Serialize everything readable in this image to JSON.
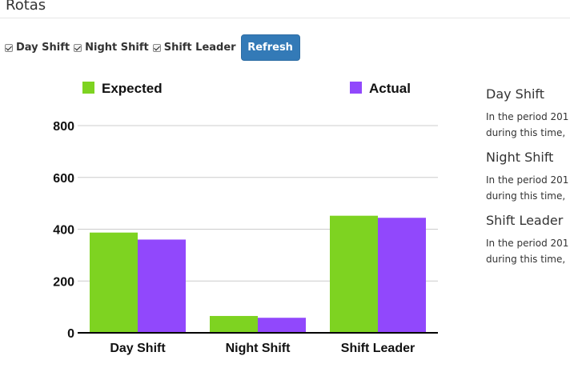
{
  "page": {
    "title": "Rotas"
  },
  "filters": [
    {
      "label": "Day Shift",
      "checked": true
    },
    {
      "label": "Night Shift",
      "checked": true
    },
    {
      "label": "Shift Leader",
      "checked": true
    }
  ],
  "refresh_label": "Refresh",
  "chart_data": {
    "type": "bar",
    "categories": [
      "Day Shift",
      "Night Shift",
      "Shift Leader"
    ],
    "series": [
      {
        "name": "Expected",
        "values": [
          387,
          65,
          452
        ],
        "color": "#7ed321"
      },
      {
        "name": "Actual",
        "values": [
          360,
          58,
          444
        ],
        "color": "#9148fc"
      }
    ],
    "ylim": [
      0,
      800
    ],
    "yticks": [
      0,
      200,
      400,
      600,
      800
    ],
    "grid": true,
    "legend": "top"
  },
  "side_panel": [
    {
      "heading": "Day Shift",
      "line1": "In the period 201",
      "line2": "during this time,"
    },
    {
      "heading": "Night Shift",
      "line1": "In the period 201",
      "line2": "during this time,"
    },
    {
      "heading": "Shift Leader",
      "line1": "In the period 201",
      "line2": "during this time,"
    }
  ]
}
